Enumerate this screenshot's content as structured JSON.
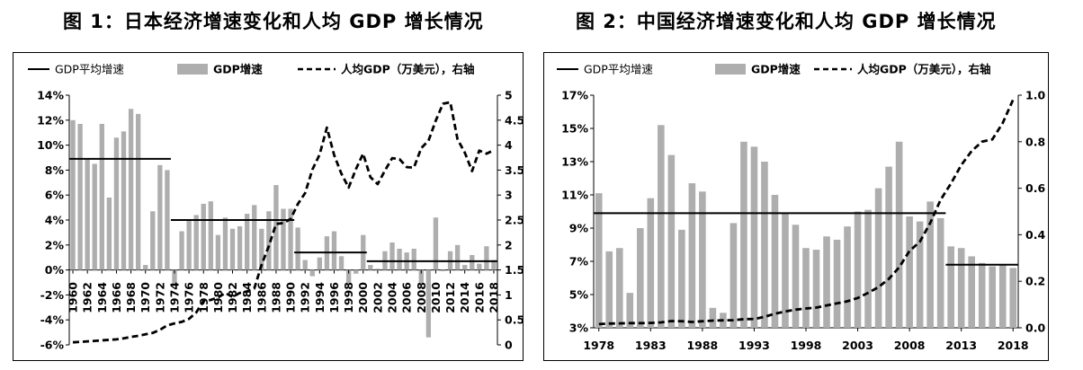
{
  "figures": [
    {
      "title": "图 1：日本经济增速变化和人均 GDP 增长情况"
    },
    {
      "title": "图 2：中国经济增速变化和人均 GDP 增长情况"
    }
  ],
  "colors": {
    "bar": "#aeaeae",
    "line": "#000000"
  },
  "chart_data": [
    {
      "type": "bar",
      "title": "图 1：日本经济增速变化和人均 GDP 增长情况",
      "legend": [
        "GDP平均增速",
        "GDP增速",
        "人均GDP（万美元），右轴"
      ],
      "legend_placement": "top",
      "x_tick_labels": [
        "1960",
        "1962",
        "1964",
        "1966",
        "1968",
        "1970",
        "1972",
        "1974",
        "1976",
        "1978",
        "1980",
        "1982",
        "1984",
        "1986",
        "1988",
        "1990",
        "1992",
        "1994",
        "1996",
        "1998",
        "2000",
        "2002",
        "2004",
        "2006",
        "2008",
        "2010",
        "2012",
        "2014",
        "2016",
        "2018"
      ],
      "y_ticks": [
        "-6%",
        "-4%",
        "-2%",
        "0%",
        "2%",
        "4%",
        "6%",
        "8%",
        "10%",
        "12%",
        "14%"
      ],
      "y2_ticks": [
        "0",
        "0.5",
        "1",
        "1.5",
        "2",
        "2.5",
        "3",
        "3.5",
        "4",
        "4.5",
        "5"
      ],
      "ylim": [
        -6,
        14
      ],
      "y2lim": [
        0,
        5
      ],
      "grid": false,
      "years": [
        1960,
        1961,
        1962,
        1963,
        1964,
        1965,
        1966,
        1967,
        1968,
        1969,
        1970,
        1971,
        1972,
        1973,
        1974,
        1975,
        1976,
        1977,
        1978,
        1979,
        1980,
        1981,
        1982,
        1983,
        1984,
        1985,
        1986,
        1987,
        1988,
        1989,
        1990,
        1991,
        1992,
        1993,
        1994,
        1995,
        1996,
        1997,
        1998,
        1999,
        2000,
        2001,
        2002,
        2003,
        2004,
        2005,
        2006,
        2007,
        2008,
        2009,
        2010,
        2011,
        2012,
        2013,
        2014,
        2015,
        2016,
        2017,
        2018
      ],
      "series": [
        {
          "name": "GDP增速",
          "kind": "bar",
          "axis": "left",
          "values": [
            12.0,
            11.7,
            8.9,
            8.5,
            11.7,
            5.8,
            10.6,
            11.1,
            12.9,
            12.5,
            0.4,
            4.7,
            8.4,
            8.0,
            -1.2,
            3.1,
            4.0,
            4.4,
            5.3,
            5.5,
            2.8,
            4.2,
            3.3,
            3.5,
            4.5,
            5.2,
            3.3,
            4.7,
            6.8,
            4.9,
            4.9,
            3.4,
            0.8,
            -0.5,
            1.0,
            2.7,
            3.1,
            1.1,
            -1.1,
            -0.3,
            2.8,
            0.4,
            0.1,
            1.5,
            2.2,
            1.7,
            1.4,
            1.7,
            -1.1,
            -5.4,
            4.2,
            -0.1,
            1.5,
            2.0,
            0.4,
            1.2,
            0.5,
            1.9,
            0.8
          ]
        },
        {
          "name": "人均GDP（万美元），右轴",
          "kind": "line",
          "style": "dashed",
          "axis": "right",
          "values": [
            0.05,
            0.06,
            0.07,
            0.08,
            0.09,
            0.1,
            0.11,
            0.13,
            0.16,
            0.18,
            0.21,
            0.24,
            0.3,
            0.39,
            0.43,
            0.46,
            0.52,
            0.65,
            0.88,
            0.9,
            0.95,
            1.04,
            0.96,
            1.04,
            1.07,
            1.13,
            1.6,
            1.98,
            2.42,
            2.44,
            2.52,
            2.82,
            3.04,
            3.51,
            3.81,
            4.35,
            3.8,
            3.43,
            3.15,
            3.52,
            3.83,
            3.36,
            3.22,
            3.49,
            3.74,
            3.72,
            3.56,
            3.55,
            3.94,
            4.09,
            4.49,
            4.83,
            4.86,
            4.12,
            3.85,
            3.48,
            3.89,
            3.83,
            3.9
          ]
        },
        {
          "name": "GDP平均增速",
          "kind": "step",
          "axis": "left",
          "segments": [
            {
              "from": 1960,
              "to": 1973,
              "value": 8.9
            },
            {
              "from": 1974,
              "to": 1990,
              "value": 4.0
            },
            {
              "from": 1991,
              "to": 2000,
              "value": 1.4
            },
            {
              "from": 2001,
              "to": 2018,
              "value": 0.7
            }
          ]
        }
      ]
    },
    {
      "type": "bar",
      "title": "图 2：中国经济增速变化和人均 GDP 增长情况",
      "legend": [
        "GDP平均增速",
        "GDP增速",
        "人均GDP（万美元），右轴"
      ],
      "legend_placement": "top",
      "x_tick_labels": [
        "1978",
        "1983",
        "1988",
        "1993",
        "1998",
        "2003",
        "2008",
        "2013",
        "2018"
      ],
      "y_ticks": [
        "3%",
        "5%",
        "7%",
        "9%",
        "11%",
        "13%",
        "15%",
        "17%"
      ],
      "y2_ticks": [
        "0.0",
        "0.2",
        "0.4",
        "0.6",
        "0.8",
        "1.0"
      ],
      "ylim": [
        3,
        17
      ],
      "y2lim": [
        0,
        1
      ],
      "grid": false,
      "years": [
        1978,
        1979,
        1980,
        1981,
        1982,
        1983,
        1984,
        1985,
        1986,
        1987,
        1988,
        1989,
        1990,
        1991,
        1992,
        1993,
        1994,
        1995,
        1996,
        1997,
        1998,
        1999,
        2000,
        2001,
        2002,
        2003,
        2004,
        2005,
        2006,
        2007,
        2008,
        2009,
        2010,
        2011,
        2012,
        2013,
        2014,
        2015,
        2016,
        2017,
        2018
      ],
      "series": [
        {
          "name": "GDP增速",
          "kind": "bar",
          "axis": "left",
          "values": [
            11.1,
            7.6,
            7.8,
            5.1,
            9.0,
            10.8,
            15.2,
            13.4,
            8.9,
            11.7,
            11.2,
            4.2,
            3.9,
            9.3,
            14.2,
            13.9,
            13.0,
            11.0,
            9.9,
            9.2,
            7.8,
            7.7,
            8.5,
            8.3,
            9.1,
            10.0,
            10.1,
            11.4,
            12.7,
            14.2,
            9.7,
            9.4,
            10.6,
            9.6,
            7.9,
            7.8,
            7.3,
            6.9,
            6.7,
            6.8,
            6.6
          ]
        },
        {
          "name": "人均GDP（万美元），右轴",
          "kind": "line",
          "style": "dashed",
          "axis": "right",
          "values": [
            0.016,
            0.018,
            0.019,
            0.02,
            0.02,
            0.021,
            0.023,
            0.029,
            0.028,
            0.025,
            0.028,
            0.031,
            0.032,
            0.033,
            0.037,
            0.038,
            0.047,
            0.061,
            0.07,
            0.078,
            0.083,
            0.087,
            0.096,
            0.105,
            0.114,
            0.128,
            0.15,
            0.175,
            0.21,
            0.26,
            0.33,
            0.37,
            0.45,
            0.55,
            0.62,
            0.7,
            0.76,
            0.8,
            0.81,
            0.88,
            0.98
          ]
        },
        {
          "name": "GDP平均增速",
          "kind": "step",
          "axis": "left",
          "segments": [
            {
              "from": 1978,
              "to": 2011,
              "value": 9.9
            },
            {
              "from": 2012,
              "to": 2018,
              "value": 6.8
            }
          ]
        }
      ]
    }
  ]
}
